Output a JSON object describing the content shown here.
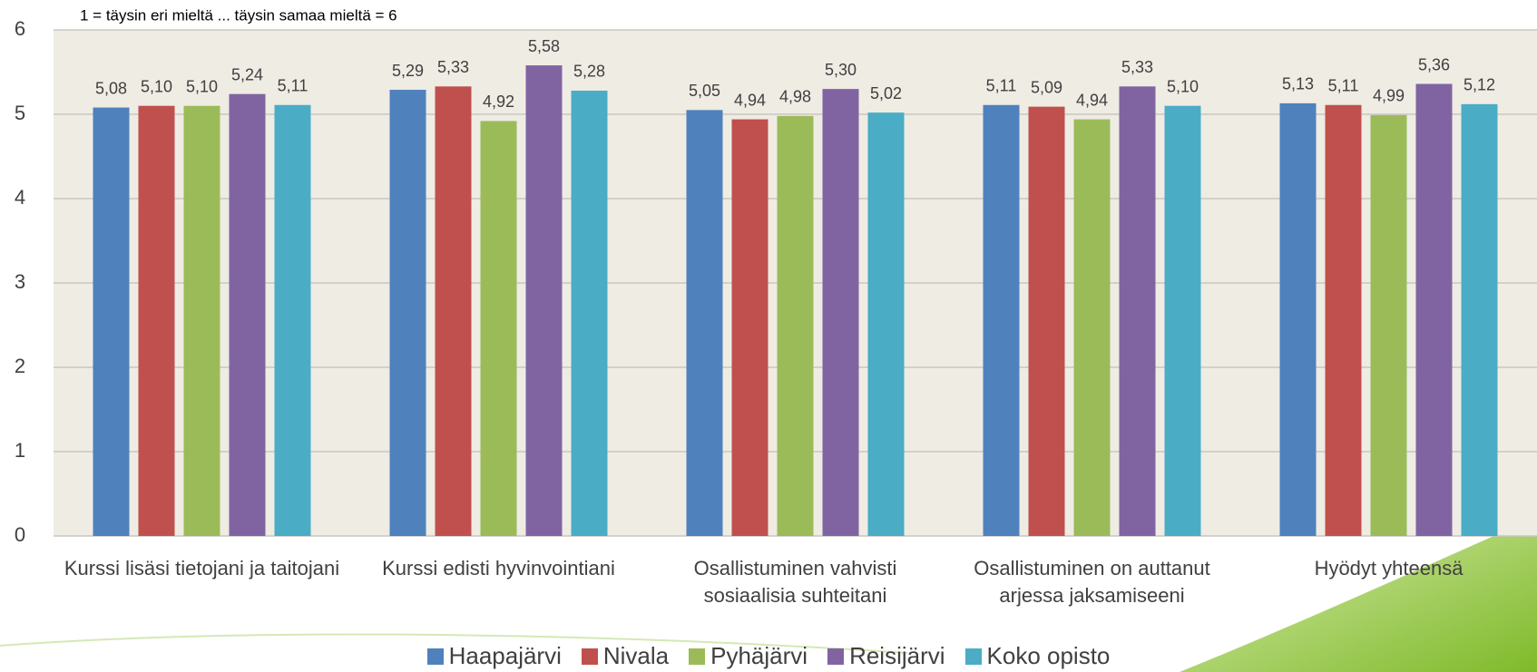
{
  "chart_data": {
    "type": "bar",
    "subtitle": "1 = täysin eri mieltä ... täysin samaa mieltä = 6",
    "categories": [
      "Kurssi lisäsi tietojani ja taitojani",
      "Kurssi edisti hyvinvointiani",
      "Osallistuminen vahvisti sosiaalisia suhteitani",
      "Osallistuminen on auttanut arjessa jaksamiseeni",
      "Hyödyt yhteensä"
    ],
    "series": [
      {
        "name": "Haapajärvi",
        "color": "#4f81bd",
        "values": [
          5.08,
          5.29,
          5.05,
          5.11,
          5.13
        ],
        "value_labels": [
          "5,08",
          "5,29",
          "5,05",
          "5,11",
          "5,13"
        ]
      },
      {
        "name": "Nivala",
        "color": "#c0504d",
        "values": [
          5.1,
          5.33,
          4.94,
          5.09,
          5.11
        ],
        "value_labels": [
          "5,10",
          "5,33",
          "4,94",
          "5,09",
          "5,11"
        ]
      },
      {
        "name": "Pyhäjärvi",
        "color": "#9bbb59",
        "values": [
          5.1,
          4.92,
          4.98,
          4.94,
          4.99
        ],
        "value_labels": [
          "5,10",
          "4,92",
          "4,98",
          "4,94",
          "4,99"
        ]
      },
      {
        "name": "Reisijärvi",
        "color": "#8064a2",
        "values": [
          5.24,
          5.58,
          5.3,
          5.33,
          5.36
        ],
        "value_labels": [
          "5,24",
          "5,58",
          "5,30",
          "5,33",
          "5,36"
        ]
      },
      {
        "name": "Koko opisto",
        "color": "#4bacc6",
        "values": [
          5.11,
          5.28,
          5.02,
          5.1,
          5.12
        ],
        "value_labels": [
          "5,11",
          "5,28",
          "5,02",
          "5,10",
          "5,12"
        ]
      }
    ],
    "ylim": [
      0,
      6
    ],
    "yticks": [
      0,
      1,
      2,
      3,
      4,
      5,
      6
    ],
    "grid": true,
    "legend": "bottom"
  }
}
